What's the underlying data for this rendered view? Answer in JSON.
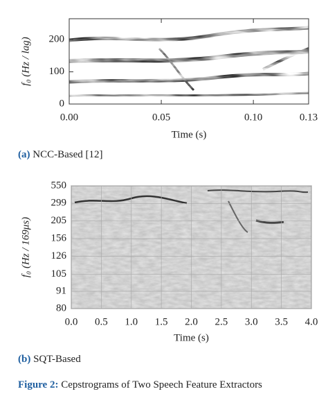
{
  "chart_data": [
    {
      "type": "heatmap",
      "xlabel": "Time (s)",
      "ylabel": "f₀ (Hz / lag)",
      "xlim": [
        0,
        0.13
      ],
      "ylim": [
        0,
        265
      ],
      "xticks": [
        {
          "value": 0,
          "label": "0.00"
        },
        {
          "value": 0.05,
          "label": "0.05"
        },
        {
          "value": 0.1,
          "label": "0.10"
        },
        {
          "value": 0.13,
          "label": "0.13"
        }
      ],
      "yticks": [
        0,
        100,
        200
      ],
      "yscale": "linear",
      "grid": false,
      "caption_label": "(a)",
      "caption": "NCC-Based [12]"
    },
    {
      "type": "heatmap",
      "xlabel": "Time (s)",
      "ylabel": "f₀ (Hz / 169μs)",
      "xlim": [
        0,
        4
      ],
      "ylim": [
        80,
        550
      ],
      "xticks": [
        {
          "value": 0,
          "label": "0.0"
        },
        0.5,
        {
          "value": 1,
          "label": "1.0"
        },
        1.5,
        {
          "value": 2,
          "label": "2.0"
        },
        2.5,
        {
          "value": 3,
          "label": "3.0"
        },
        3.5,
        {
          "value": 4,
          "label": "4.0"
        }
      ],
      "yticks": [
        80,
        91,
        105,
        126,
        156,
        205,
        299,
        550
      ],
      "yscale": "reciprocal",
      "grid": true,
      "caption_label": "(b)",
      "caption": "SQT-Based"
    }
  ],
  "figure_caption": {
    "label": "Figure 2:",
    "text": "Cepstrograms of Two Speech Feature Extractors"
  }
}
